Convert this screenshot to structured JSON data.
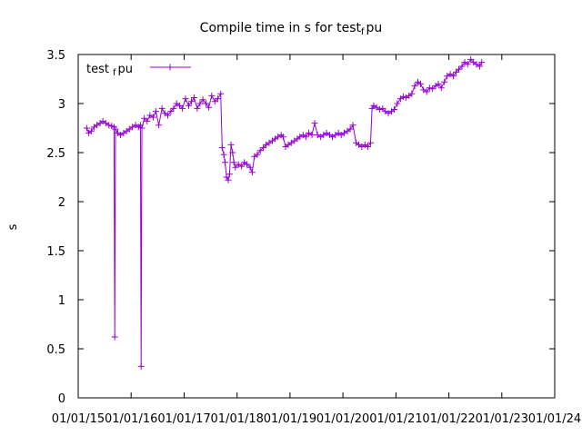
{
  "chart_data": {
    "type": "line",
    "title_prefix": "Compile time in s for test",
    "title_sub": "f",
    "title_suffix": "pu",
    "ylabel": "s",
    "xlabel": "",
    "xlim": [
      "2015-01-01",
      "2024-01-01"
    ],
    "ylim": [
      0,
      3.5
    ],
    "y_ticks": [
      "0",
      "0.5",
      "1",
      "1.5",
      "2",
      "2.5",
      "3",
      "3.5"
    ],
    "x_ticks": [
      "01/01/15",
      "01/01/16",
      "01/01/17",
      "01/01/18",
      "01/01/19",
      "01/01/20",
      "01/01/21",
      "01/01/22",
      "01/01/23",
      "01/01/24"
    ],
    "legend": {
      "position": "top-left",
      "label_prefix": "test",
      "label_sub": "f",
      "label_suffix": "pu"
    },
    "series_color": "#9400d3",
    "grid": false,
    "series": [
      {
        "name": "test_fpu",
        "points": [
          [
            "2015-03-01",
            2.75
          ],
          [
            "2015-03-15",
            2.7
          ],
          [
            "2015-04-01",
            2.72
          ],
          [
            "2015-04-20",
            2.76
          ],
          [
            "2015-05-10",
            2.78
          ],
          [
            "2015-06-01",
            2.8
          ],
          [
            "2015-06-20",
            2.82
          ],
          [
            "2015-07-10",
            2.8
          ],
          [
            "2015-08-01",
            2.78
          ],
          [
            "2015-08-20",
            2.77
          ],
          [
            "2015-09-05",
            2.76
          ],
          [
            "2015-09-10",
            0.62
          ],
          [
            "2015-09-15",
            2.74
          ],
          [
            "2015-10-01",
            2.7
          ],
          [
            "2015-10-20",
            2.68
          ],
          [
            "2015-11-10",
            2.7
          ],
          [
            "2015-12-01",
            2.72
          ],
          [
            "2015-12-20",
            2.74
          ],
          [
            "2016-01-10",
            2.76
          ],
          [
            "2016-02-01",
            2.78
          ],
          [
            "2016-02-20",
            2.76
          ],
          [
            "2016-03-05",
            2.78
          ],
          [
            "2016-03-10",
            0.32
          ],
          [
            "2016-03-15",
            2.75
          ],
          [
            "2016-04-01",
            2.85
          ],
          [
            "2016-04-20",
            2.82
          ],
          [
            "2016-05-10",
            2.88
          ],
          [
            "2016-06-01",
            2.86
          ],
          [
            "2016-06-20",
            2.92
          ],
          [
            "2016-07-10",
            2.78
          ],
          [
            "2016-08-01",
            2.95
          ],
          [
            "2016-08-20",
            2.9
          ],
          [
            "2016-09-10",
            2.88
          ],
          [
            "2016-10-01",
            2.92
          ],
          [
            "2016-10-20",
            2.95
          ],
          [
            "2016-11-10",
            3.0
          ],
          [
            "2016-12-01",
            2.98
          ],
          [
            "2016-12-20",
            2.95
          ],
          [
            "2017-01-10",
            3.05
          ],
          [
            "2017-02-01",
            2.98
          ],
          [
            "2017-02-20",
            3.02
          ],
          [
            "2017-03-10",
            3.06
          ],
          [
            "2017-04-01",
            2.95
          ],
          [
            "2017-04-20",
            3.0
          ],
          [
            "2017-05-10",
            3.04
          ],
          [
            "2017-06-01",
            3.0
          ],
          [
            "2017-06-20",
            2.96
          ],
          [
            "2017-07-10",
            3.08
          ],
          [
            "2017-08-01",
            3.02
          ],
          [
            "2017-08-20",
            3.05
          ],
          [
            "2017-09-10",
            3.1
          ],
          [
            "2017-09-20",
            2.55
          ],
          [
            "2017-10-01",
            2.48
          ],
          [
            "2017-10-10",
            2.4
          ],
          [
            "2017-10-20",
            2.25
          ],
          [
            "2017-11-01",
            2.22
          ],
          [
            "2017-11-10",
            2.28
          ],
          [
            "2017-11-20",
            2.58
          ],
          [
            "2017-12-01",
            2.5
          ],
          [
            "2017-12-10",
            2.4
          ],
          [
            "2017-12-20",
            2.35
          ],
          [
            "2018-01-10",
            2.38
          ],
          [
            "2018-02-01",
            2.36
          ],
          [
            "2018-02-20",
            2.4
          ],
          [
            "2018-03-10",
            2.38
          ],
          [
            "2018-04-01",
            2.35
          ],
          [
            "2018-04-15",
            2.3
          ],
          [
            "2018-05-01",
            2.46
          ],
          [
            "2018-05-20",
            2.48
          ],
          [
            "2018-06-10",
            2.52
          ],
          [
            "2018-07-01",
            2.55
          ],
          [
            "2018-07-20",
            2.58
          ],
          [
            "2018-08-10",
            2.6
          ],
          [
            "2018-09-01",
            2.62
          ],
          [
            "2018-09-20",
            2.64
          ],
          [
            "2018-10-10",
            2.66
          ],
          [
            "2018-11-01",
            2.68
          ],
          [
            "2018-11-15",
            2.66
          ],
          [
            "2018-12-01",
            2.56
          ],
          [
            "2018-12-20",
            2.58
          ],
          [
            "2019-01-10",
            2.6
          ],
          [
            "2019-02-01",
            2.62
          ],
          [
            "2019-02-20",
            2.64
          ],
          [
            "2019-03-10",
            2.66
          ],
          [
            "2019-04-01",
            2.68
          ],
          [
            "2019-04-20",
            2.66
          ],
          [
            "2019-05-10",
            2.7
          ],
          [
            "2019-06-01",
            2.68
          ],
          [
            "2019-06-20",
            2.8
          ],
          [
            "2019-07-10",
            2.68
          ],
          [
            "2019-08-01",
            2.66
          ],
          [
            "2019-08-20",
            2.68
          ],
          [
            "2019-09-10",
            2.7
          ],
          [
            "2019-10-01",
            2.68
          ],
          [
            "2019-10-20",
            2.66
          ],
          [
            "2019-11-10",
            2.68
          ],
          [
            "2019-12-01",
            2.7
          ],
          [
            "2019-12-20",
            2.68
          ],
          [
            "2020-01-10",
            2.7
          ],
          [
            "2020-02-01",
            2.72
          ],
          [
            "2020-02-20",
            2.74
          ],
          [
            "2020-03-10",
            2.78
          ],
          [
            "2020-04-01",
            2.6
          ],
          [
            "2020-04-20",
            2.58
          ],
          [
            "2020-05-10",
            2.56
          ],
          [
            "2020-06-01",
            2.58
          ],
          [
            "2020-06-20",
            2.56
          ],
          [
            "2020-07-10",
            2.6
          ],
          [
            "2020-07-20",
            2.95
          ],
          [
            "2020-08-01",
            2.98
          ],
          [
            "2020-08-20",
            2.96
          ],
          [
            "2020-09-10",
            2.94
          ],
          [
            "2020-10-01",
            2.95
          ],
          [
            "2020-10-20",
            2.92
          ],
          [
            "2020-11-10",
            2.9
          ],
          [
            "2020-12-01",
            2.92
          ],
          [
            "2020-12-20",
            2.94
          ],
          [
            "2021-01-10",
            3.0
          ],
          [
            "2021-02-01",
            3.05
          ],
          [
            "2021-02-20",
            3.07
          ],
          [
            "2021-03-10",
            3.06
          ],
          [
            "2021-04-01",
            3.08
          ],
          [
            "2021-04-20",
            3.1
          ],
          [
            "2021-05-10",
            3.18
          ],
          [
            "2021-06-01",
            3.22
          ],
          [
            "2021-06-20",
            3.2
          ],
          [
            "2021-07-10",
            3.14
          ],
          [
            "2021-08-01",
            3.12
          ],
          [
            "2021-08-20",
            3.16
          ],
          [
            "2021-09-10",
            3.15
          ],
          [
            "2021-10-01",
            3.18
          ],
          [
            "2021-10-20",
            3.2
          ],
          [
            "2021-11-10",
            3.16
          ],
          [
            "2021-12-01",
            3.22
          ],
          [
            "2021-12-20",
            3.28
          ],
          [
            "2022-01-10",
            3.3
          ],
          [
            "2022-02-01",
            3.28
          ],
          [
            "2022-02-20",
            3.32
          ],
          [
            "2022-03-10",
            3.35
          ],
          [
            "2022-04-01",
            3.38
          ],
          [
            "2022-04-20",
            3.42
          ],
          [
            "2022-05-10",
            3.4
          ],
          [
            "2022-06-01",
            3.45
          ],
          [
            "2022-06-20",
            3.42
          ],
          [
            "2022-07-10",
            3.4
          ],
          [
            "2022-08-01",
            3.38
          ],
          [
            "2022-08-15",
            3.42
          ]
        ]
      }
    ]
  }
}
